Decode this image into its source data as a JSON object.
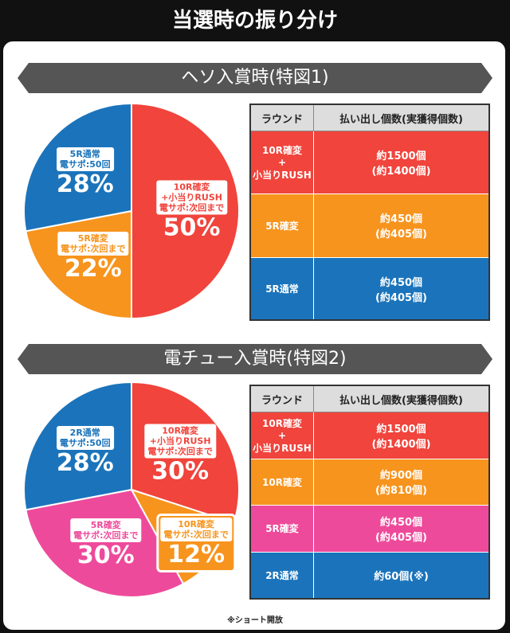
{
  "title": "当選時の振り分け",
  "chart_data": [
    {
      "type": "pie",
      "title": "ヘソ入賞時(特図1)",
      "categories": [
        "10R確変\n+小当りRUSH\n電サポ:次回まで",
        "5R確変\n電サポ:次回まで",
        "5R通常\n電サポ:50回"
      ],
      "values": [
        50,
        22,
        28
      ],
      "value_labels": [
        "50%",
        "22%",
        "28%"
      ],
      "colors": [
        "#f0443c",
        "#f7941d",
        "#1b74bb"
      ]
    },
    {
      "type": "pie",
      "title": "電チュー入賞時(特図2)",
      "categories": [
        "10R確変\n+小当りRUSH\n電サポ:次回まで",
        "10R確変\n電サポ:次回まで",
        "5R確変\n電サポ:次回まで",
        "2R通常\n電サポ:50回"
      ],
      "values": [
        30,
        12,
        30,
        28
      ],
      "value_labels": [
        "30%",
        "12%",
        "30%",
        "28%"
      ],
      "colors": [
        "#f0443c",
        "#f7941d",
        "#ee4a9b",
        "#1b74bb"
      ]
    }
  ],
  "tables": [
    {
      "header": [
        "ラウンド",
        "払い出し個数(実獲得個数)"
      ],
      "rows": [
        {
          "color": "#f0443c",
          "cells": [
            "10R確変\n+\n小当りRUSH",
            "約1500個\n(約1400個)"
          ]
        },
        {
          "color": "#f7941d",
          "cells": [
            "5R確変",
            "約450個\n(約405個)"
          ]
        },
        {
          "color": "#1b74bb",
          "cells": [
            "5R通常",
            "約450個\n(約405個)"
          ]
        }
      ]
    },
    {
      "header": [
        "ラウンド",
        "払い出し個数(実獲得個数)"
      ],
      "rows": [
        {
          "color": "#f0443c",
          "cells": [
            "10R確変\n+\n小当りRUSH",
            "約1500個\n(約1400個)"
          ]
        },
        {
          "color": "#f7941d",
          "cells": [
            "10R確変",
            "約900個\n(約810個)"
          ]
        },
        {
          "color": "#ee4a9b",
          "cells": [
            "5R確変",
            "約450個\n(約405個)"
          ]
        },
        {
          "color": "#1b74bb",
          "cells": [
            "2R通常",
            "約60個(※)"
          ]
        }
      ]
    }
  ],
  "footnote": "※ショート開放"
}
